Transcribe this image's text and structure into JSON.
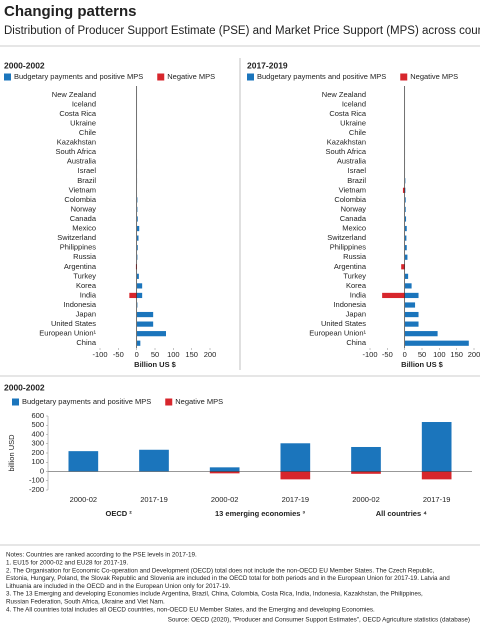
{
  "title": "Changing patterns",
  "subtitle": "Distribution of Producer Support Estimate (PSE) and Market Price Support (MPS) across countries",
  "chart_data": [
    {
      "type": "hbar",
      "title": "2000-2002",
      "categories": [
        "New Zealand",
        "Iceland",
        "Costa Rica",
        "Ukraine",
        "Chile",
        "Kazakhstan",
        "South Africa",
        "Australia",
        "Israel",
        "Brazil",
        "Vietnam",
        "Colombia",
        "Norway",
        "Canada",
        "Mexico",
        "Switzerland",
        "Philippines",
        "Russia",
        "Argentina",
        "Turkey",
        "Korea",
        "India",
        "Indonesia",
        "Japan",
        "United States",
        "European Union¹",
        "China"
      ],
      "series": [
        {
          "name": "Budgetary payments and positive MPS",
          "color": "#1b75bc",
          "values": [
            0,
            0,
            0,
            0,
            0,
            0,
            0,
            1,
            1,
            1,
            0,
            2,
            2,
            3,
            7,
            5,
            3,
            2,
            0,
            6,
            15,
            15,
            2,
            45,
            45,
            80,
            10
          ]
        },
        {
          "name": "Negative MPS",
          "color": "#d7262c",
          "values": [
            0,
            0,
            0,
            0,
            0,
            0,
            0,
            0,
            0,
            0,
            0,
            0,
            0,
            0,
            0,
            0,
            0,
            0,
            -2,
            0,
            0,
            -20,
            0,
            0,
            0,
            0,
            0
          ]
        }
      ],
      "xlim": [
        -100,
        200
      ],
      "xticks": [
        -100,
        -50,
        0,
        50,
        100,
        150,
        200
      ],
      "xlabel": "Billion US $"
    },
    {
      "type": "hbar",
      "title": "2017-2019",
      "categories": [
        "New Zealand",
        "Iceland",
        "Costa Rica",
        "Ukraine",
        "Chile",
        "Kazakhstan",
        "South Africa",
        "Australia",
        "Israel",
        "Brazil",
        "Vietnam",
        "Colombia",
        "Norway",
        "Canada",
        "Mexico",
        "Switzerland",
        "Philippines",
        "Russia",
        "Argentina",
        "Turkey",
        "Korea",
        "India",
        "Indonesia",
        "Japan",
        "United States",
        "European Union¹",
        "China"
      ],
      "series": [
        {
          "name": "Budgetary payments and positive MPS",
          "color": "#1b75bc",
          "values": [
            0,
            0,
            0,
            0,
            0,
            1,
            1,
            1,
            1,
            2,
            2,
            3,
            3,
            4,
            6,
            5,
            6,
            8,
            0,
            10,
            20,
            40,
            30,
            40,
            40,
            95,
            185
          ]
        },
        {
          "name": "Negative MPS",
          "color": "#d7262c",
          "values": [
            0,
            0,
            0,
            0,
            0,
            0,
            0,
            0,
            0,
            0,
            -5,
            0,
            0,
            0,
            0,
            0,
            0,
            0,
            -10,
            0,
            0,
            -65,
            0,
            0,
            0,
            0,
            0
          ]
        }
      ],
      "xlim": [
        -100,
        200
      ],
      "xticks": [
        -100,
        -50,
        0,
        50,
        100,
        150,
        200
      ],
      "xlabel": "Billion US $"
    },
    {
      "type": "bar",
      "title": "2000-2002",
      "groups": [
        "OECD ²",
        "13 emerging economies ³",
        "All countries ⁴"
      ],
      "categories": [
        "2000-02",
        "2017-19",
        "2000-02",
        "2017-19",
        "2000-02",
        "2017-19"
      ],
      "series": [
        {
          "name": "Budgetary payments and positive MPS",
          "color": "#1b75bc",
          "values": [
            220,
            235,
            45,
            305,
            265,
            535
          ]
        },
        {
          "name": "Negative MPS",
          "color": "#d7262c",
          "values": [
            0,
            0,
            -20,
            -85,
            -25,
            -85
          ]
        }
      ],
      "ylim": [
        -200,
        600
      ],
      "yticks": [
        -200,
        -100,
        0,
        100,
        200,
        300,
        400,
        500,
        600
      ],
      "ylabel": "billion USD"
    }
  ],
  "notes": [
    "Notes: Countries are ranked according to the PSE levels in 2017-19.",
    "1. EU15 for 2000-02 and EU28 for 2017-19.",
    "2. The Organisation for Economic Co-operation and Development (OECD) total does not include the non-OECD EU Member States. The Czech Republic,",
    "Estonia, Hungary, Poland, the Slovak Republic and Slovenia are included in the OECD total for both periods and in the European Union for 2017-19. Latvia and",
    "Lithuania are included in the OECD and in the European Union only for 2017-19.",
    "3. The 13 Emerging and developing Economies include Argentina, Brazil, China, Colombia, Costa Rica, India, Indonesia, Kazakhstan, the Philippines,",
    "Russian Federation, South Africa, Ukraine and Viet Nam.",
    "4. The All countries total includes all OECD countries, non-OECD EU Member States, and the Emerging and developing Economies."
  ],
  "source": "Source: OECD (2020), \"Producer and Consumer Support Estimates\", OECD Agriculture statistics (database)"
}
